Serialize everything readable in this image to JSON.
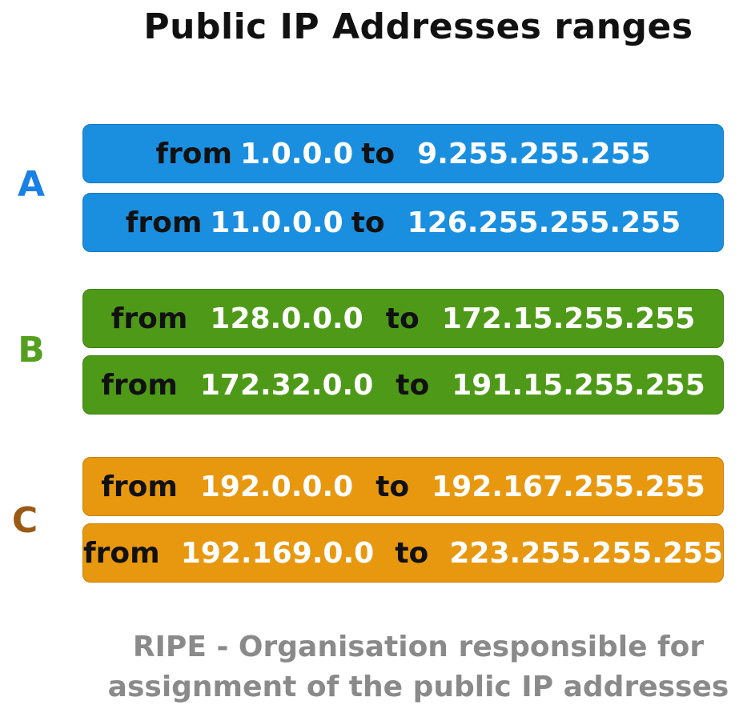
{
  "title": "Public IP Addresses ranges",
  "colors": {
    "class_a": "#1a8fe0",
    "class_b": "#4e9a18",
    "class_c": "#e8980f",
    "letter_a": "#1a80e6",
    "letter_b": "#54a01e",
    "letter_c": "#9a5a14"
  },
  "classes": [
    {
      "letter": "A",
      "ranges": [
        {
          "from_label": "from",
          "start": "1.0.0.0",
          "to_label": "to",
          "end": "9.255.255.255"
        },
        {
          "from_label": "from",
          "start": "11.0.0.0",
          "to_label": "to",
          "end": "126.255.255.255"
        }
      ]
    },
    {
      "letter": "B",
      "ranges": [
        {
          "from_label": "from",
          "start": "128.0.0.0",
          "to_label": "to",
          "end": "172.15.255.255"
        },
        {
          "from_label": "from",
          "start": "172.32.0.0",
          "to_label": "to",
          "end": "191.15.255.255"
        }
      ]
    },
    {
      "letter": "C",
      "ranges": [
        {
          "from_label": "from",
          "start": "192.0.0.0",
          "to_label": "to",
          "end": "192.167.255.255"
        },
        {
          "from_label": "from",
          "start": "192.169.0.0",
          "to_label": "to",
          "end": "223.255.255.255"
        }
      ]
    }
  ],
  "footer": {
    "line1": "RIPE - Organisation responsible for",
    "line2": "assignment of the public IP addresses"
  }
}
